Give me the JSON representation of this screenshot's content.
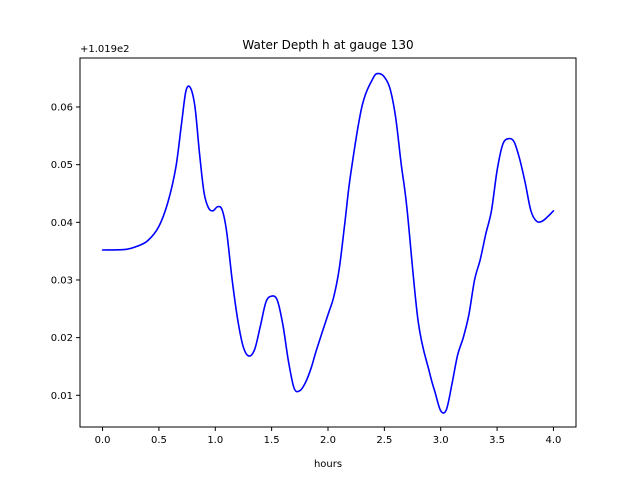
{
  "chart_data": {
    "type": "line",
    "title": "Water Depth h at gauge 130",
    "xlabel": "hours",
    "ylabel": "",
    "offset_label": "+1.019e2",
    "offset_value": 101.9,
    "xlim": [
      -0.2,
      4.2
    ],
    "ylim": [
      0.0045,
      0.0685
    ],
    "xticks": [
      0.0,
      0.5,
      1.0,
      1.5,
      2.0,
      2.5,
      3.0,
      3.5,
      4.0
    ],
    "xtick_labels": [
      "0.0",
      "0.5",
      "1.0",
      "1.5",
      "2.0",
      "2.5",
      "3.0",
      "3.5",
      "4.0"
    ],
    "yticks": [
      0.01,
      0.02,
      0.03,
      0.04,
      0.05,
      0.06
    ],
    "ytick_labels": [
      "0.01",
      "0.02",
      "0.03",
      "0.04",
      "0.05",
      "0.06"
    ],
    "grid": false,
    "color": "#0000ff",
    "series": [
      {
        "x": [
          0.0,
          0.2,
          0.3,
          0.4,
          0.5,
          0.58,
          0.65,
          0.7,
          0.74,
          0.78,
          0.82,
          0.86,
          0.9,
          0.94,
          0.98,
          1.02,
          1.06,
          1.1,
          1.15,
          1.2,
          1.25,
          1.3,
          1.35,
          1.4,
          1.45,
          1.5,
          1.55,
          1.6,
          1.65,
          1.7,
          1.75,
          1.8,
          1.85,
          1.9,
          2.0,
          2.05,
          2.1,
          2.15,
          2.2,
          2.3,
          2.4,
          2.45,
          2.5,
          2.55,
          2.6,
          2.65,
          2.7,
          2.8,
          2.9,
          2.95,
          3.0,
          3.05,
          3.1,
          3.15,
          3.2,
          3.25,
          3.3,
          3.35,
          3.4,
          3.45,
          3.5,
          3.55,
          3.6,
          3.65,
          3.7,
          3.75,
          3.8,
          3.85,
          3.9,
          3.95,
          4.0
        ],
        "values": [
          0.0352,
          0.0353,
          0.0358,
          0.0368,
          0.0393,
          0.0435,
          0.0495,
          0.057,
          0.0628,
          0.0633,
          0.06,
          0.052,
          0.0452,
          0.0425,
          0.042,
          0.0427,
          0.0422,
          0.0385,
          0.03,
          0.023,
          0.0183,
          0.0168,
          0.018,
          0.022,
          0.0262,
          0.0272,
          0.0265,
          0.0222,
          0.0158,
          0.0112,
          0.0108,
          0.0122,
          0.0147,
          0.018,
          0.024,
          0.027,
          0.032,
          0.04,
          0.0482,
          0.06,
          0.065,
          0.0658,
          0.0652,
          0.0632,
          0.0582,
          0.05,
          0.0425,
          0.0228,
          0.014,
          0.0105,
          0.0073,
          0.0075,
          0.012,
          0.017,
          0.02,
          0.024,
          0.03,
          0.0335,
          0.038,
          0.042,
          0.049,
          0.0535,
          0.0545,
          0.054,
          0.051,
          0.0468,
          0.042,
          0.0402,
          0.0402,
          0.041,
          0.042
        ]
      }
    ]
  }
}
